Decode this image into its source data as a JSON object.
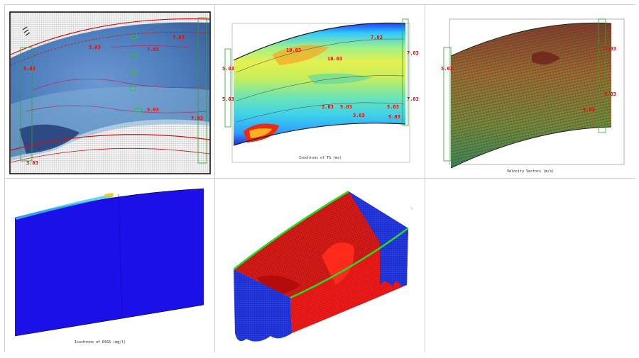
{
  "panels": [
    {
      "id": "panel-1",
      "values": [
        "7.03",
        "5.03",
        "7.03",
        "5.03",
        "5.03",
        "7.03",
        "3.03"
      ]
    },
    {
      "id": "panel-2",
      "caption": "Isochrons of TS (ms)",
      "values": [
        "10.03",
        "10.03",
        "7.03",
        "7.03",
        "3.03",
        "5.03",
        "3.03",
        "5.03",
        "5.03",
        "5.03",
        "5.03",
        "7.03"
      ]
    },
    {
      "id": "panel-3",
      "caption": "Velocity Vectors (m/s)",
      "values": [
        "5.03",
        "7.03",
        "7.03",
        "5.03"
      ]
    },
    {
      "id": "panel-4",
      "caption": "Isochrons of DSSS (mg/l)"
    },
    {
      "id": "panel-5"
    },
    {
      "id": "panel-6"
    }
  ],
  "colors": {
    "grid_border": "#cfcfcf",
    "contour_red": "#d01010",
    "surface_red": "#e01010",
    "surface_blue": "#1a2fd0",
    "edge_green": "#22dd22"
  }
}
